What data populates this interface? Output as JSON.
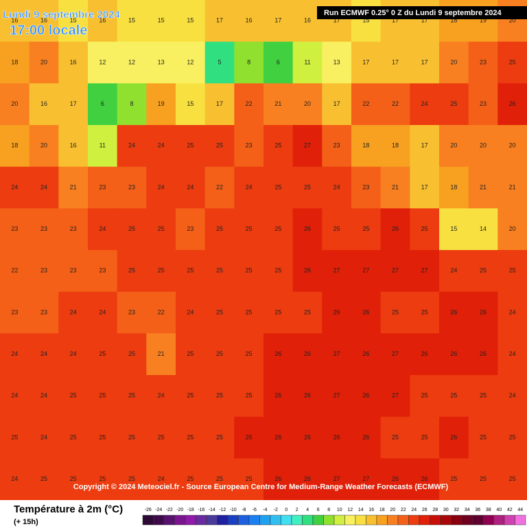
{
  "header": {
    "date": "Lundi 9 septembre 2024",
    "time": "17:00 locale",
    "run": "Run ECMWF 0.25° 0 Z du Lundi 9 septembre 2024"
  },
  "copyright": "Copyright © 2024 Meteociel.fr - Source European Centre for Medium-Range Weather Forecasts (ECMWF)",
  "legend": {
    "title": "Température à 2m (°C)",
    "subtitle": "(+ 15h)",
    "ticks": [
      -26,
      -24,
      -22,
      -20,
      -18,
      -16,
      -14,
      -12,
      -10,
      -8,
      -6,
      -4,
      -2,
      0,
      2,
      4,
      6,
      8,
      10,
      12,
      14,
      16,
      18,
      20,
      22,
      24,
      26,
      28,
      30,
      32,
      34,
      36,
      38,
      40,
      42,
      44
    ],
    "colors": [
      "#2d0a35",
      "#3e0b4a",
      "#5a1070",
      "#7a158f",
      "#8f1aa8",
      "#6a2aa0",
      "#4a3a9a",
      "#2020a0",
      "#1a40c0",
      "#1a60e0",
      "#1a80f0",
      "#20a0f0",
      "#30c0f0",
      "#40e0f0",
      "#40f0c0",
      "#30e080",
      "#40d040",
      "#90e030",
      "#d0f040",
      "#f8f060",
      "#f8e040",
      "#f8c030",
      "#f8a020",
      "#f88020",
      "#f46018",
      "#ec3c10",
      "#e02008",
      "#c81008",
      "#a80808",
      "#880010",
      "#700020",
      "#600030",
      "#900050",
      "#b02080",
      "#d040b0",
      "#f070e0"
    ]
  },
  "grid": {
    "values": [
      [
        16,
        16,
        15,
        16,
        15,
        15,
        15,
        17,
        16,
        17,
        16,
        17,
        15,
        17,
        17,
        18,
        19,
        20
      ],
      [
        18,
        20,
        16,
        12,
        12,
        13,
        12,
        5,
        8,
        6,
        11,
        13,
        17,
        17,
        17,
        20,
        23,
        25
      ],
      [
        20,
        16,
        17,
        6,
        8,
        19,
        15,
        17,
        22,
        21,
        20,
        17,
        22,
        22,
        24,
        25,
        23,
        26
      ],
      [
        18,
        20,
        16,
        11,
        24,
        24,
        25,
        25,
        23,
        25,
        27,
        23,
        18,
        18,
        17,
        20,
        20,
        20
      ],
      [
        24,
        24,
        21,
        23,
        23,
        24,
        24,
        22,
        24,
        25,
        25,
        24,
        23,
        21,
        17,
        18,
        21,
        21
      ],
      [
        23,
        23,
        23,
        24,
        25,
        25,
        23,
        25,
        25,
        25,
        26,
        25,
        25,
        26,
        25,
        15,
        14,
        20
      ],
      [
        22,
        23,
        23,
        23,
        25,
        25,
        25,
        25,
        25,
        25,
        26,
        27,
        27,
        27,
        27,
        24,
        25,
        25
      ],
      [
        23,
        23,
        24,
        24,
        23,
        22,
        24,
        25,
        25,
        25,
        25,
        26,
        26,
        25,
        25,
        26,
        26,
        24
      ],
      [
        24,
        24,
        24,
        25,
        25,
        21,
        25,
        25,
        25,
        26,
        26,
        27,
        26,
        27,
        26,
        26,
        26,
        24
      ],
      [
        24,
        24,
        25,
        25,
        25,
        24,
        25,
        25,
        25,
        26,
        26,
        27,
        26,
        27,
        25,
        25,
        25,
        24
      ],
      [
        25,
        24,
        25,
        25,
        25,
        25,
        25,
        25,
        26,
        26,
        26,
        26,
        26,
        25,
        25,
        26,
        25,
        25
      ],
      [
        24,
        25,
        25,
        25,
        25,
        24,
        25,
        25,
        25,
        26,
        26,
        27,
        27,
        26,
        26,
        25,
        25,
        25
      ]
    ]
  }
}
